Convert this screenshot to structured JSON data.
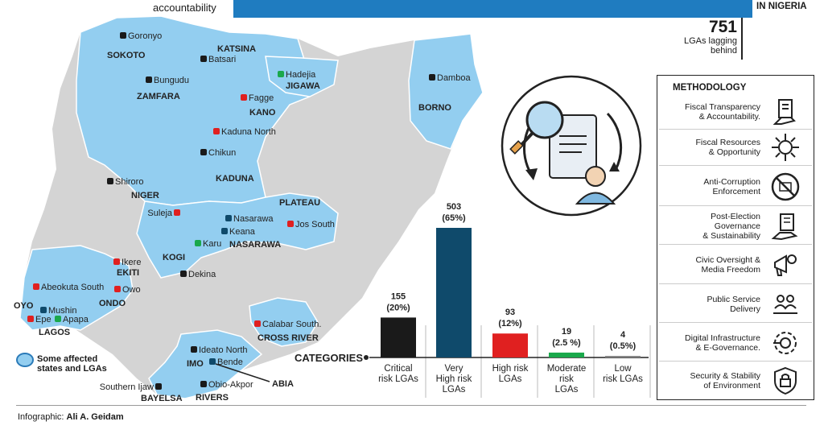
{
  "header": {
    "left_text": "accountability",
    "right_text": "IN NIGERIA",
    "stat_value": "751",
    "stat_label_line1": "LGAs lagging",
    "stat_label_line2": "behind"
  },
  "colors": {
    "map_fill": "#93cef0",
    "critical": "#1a1a1a",
    "very_high": "#0f4a6b",
    "high": "#e02020",
    "moderate": "#1aa84b",
    "low": "#888888",
    "top_bar": "#1f7cc0"
  },
  "map": {
    "states": [
      {
        "name": "SOKOTO"
      },
      {
        "name": "KATSINA"
      },
      {
        "name": "ZAMFARA"
      },
      {
        "name": "JIGAWA"
      },
      {
        "name": "KANO"
      },
      {
        "name": "BORNO"
      },
      {
        "name": "KADUNA"
      },
      {
        "name": "NIGER"
      },
      {
        "name": "PLATEAU"
      },
      {
        "name": "NASARAWA"
      },
      {
        "name": "KOGI"
      },
      {
        "name": "EKITI"
      },
      {
        "name": "ONDO"
      },
      {
        "name": "OYO"
      },
      {
        "name": "LAGOS"
      },
      {
        "name": "CROSS RIVER"
      },
      {
        "name": "IMO"
      },
      {
        "name": "ABIA"
      },
      {
        "name": "BAYELSA"
      },
      {
        "name": "RIVERS"
      }
    ],
    "lgas": [
      {
        "name": "Goronyo",
        "risk": "critical"
      },
      {
        "name": "Batsari",
        "risk": "critical"
      },
      {
        "name": "Hadejia",
        "risk": "moderate"
      },
      {
        "name": "Bungudu",
        "risk": "critical"
      },
      {
        "name": "Fagge",
        "risk": "high"
      },
      {
        "name": "Damboa",
        "risk": "critical"
      },
      {
        "name": "Kaduna North",
        "risk": "high"
      },
      {
        "name": "Chikun",
        "risk": "critical"
      },
      {
        "name": "Shiroro",
        "risk": "critical"
      },
      {
        "name": "Suleja",
        "risk": "high"
      },
      {
        "name": "Nasarawa",
        "risk": "very_high"
      },
      {
        "name": "Keana",
        "risk": "very_high"
      },
      {
        "name": "Jos South",
        "risk": "high"
      },
      {
        "name": "Karu",
        "risk": "moderate"
      },
      {
        "name": "Ikere",
        "risk": "high"
      },
      {
        "name": "Dekina",
        "risk": "critical"
      },
      {
        "name": "Owo",
        "risk": "high"
      },
      {
        "name": "Abeokuta South",
        "risk": "high"
      },
      {
        "name": "Mushin",
        "risk": "very_high"
      },
      {
        "name": "Epe",
        "risk": "high"
      },
      {
        "name": "Apapa",
        "risk": "moderate"
      },
      {
        "name": "Calabar South.",
        "risk": "high"
      },
      {
        "name": "Ideato North",
        "risk": "critical"
      },
      {
        "name": "Bende",
        "risk": "very_high"
      },
      {
        "name": "Southern Ijaw",
        "risk": "critical"
      },
      {
        "name": "Obio-Akpor",
        "risk": "critical"
      }
    ],
    "legend_line1": "Some affected",
    "legend_line2": "states and LGAs"
  },
  "chart_data": {
    "type": "bar",
    "xlabel": "CATEGORIES",
    "categories": [
      [
        "Critical",
        "risk LGAs"
      ],
      [
        "Very",
        "High risk",
        "LGAs"
      ],
      [
        "High risk",
        "LGAs"
      ],
      [
        "Moderate",
        "risk",
        "LGAs"
      ],
      [
        "Low",
        "risk LGAs"
      ]
    ],
    "values": [
      155,
      503,
      93,
      19,
      4
    ],
    "value_labels": [
      "155",
      "503",
      "93",
      "19",
      "4"
    ],
    "percent_labels": [
      "(20%)",
      "(65%)",
      "(12%)",
      "(2.5 %)",
      "(0.5%)"
    ],
    "colors": [
      "#1a1a1a",
      "#0f4a6b",
      "#e02020",
      "#1aa84b",
      "#888888"
    ],
    "ylim": [
      0,
      503
    ],
    "grid": false
  },
  "methodology": {
    "title": "METHODOLOGY",
    "items": [
      {
        "line1": "Fiscal Transparency",
        "line2": "& Accountability.",
        "icon": "document-hand-icon"
      },
      {
        "line1": "Fiscal Resources",
        "line2": "& Opportunity",
        "icon": "virus-icon"
      },
      {
        "line1": "Anti-Corruption",
        "line2": "Enforcement",
        "icon": "no-bribe-icon"
      },
      {
        "line1": "Post-Election",
        "line2": "Governance",
        "line3": "& Sustainability",
        "icon": "building-hand-icon"
      },
      {
        "line1": "Civic Oversight &",
        "line2": "Media Freedom",
        "icon": "megaphone-icon"
      },
      {
        "line1": "Public Service",
        "line2": "Delivery",
        "icon": "people-hands-icon"
      },
      {
        "line1": "Digital Infrastructure",
        "line2": "& E-Governance.",
        "icon": "gear-circuit-icon"
      },
      {
        "line1": "Security & Stability",
        "line2": "of Environment",
        "icon": "shield-lock-icon"
      }
    ]
  },
  "credit": {
    "label": "Infographic:",
    "name": "Ali A. Geidam"
  }
}
